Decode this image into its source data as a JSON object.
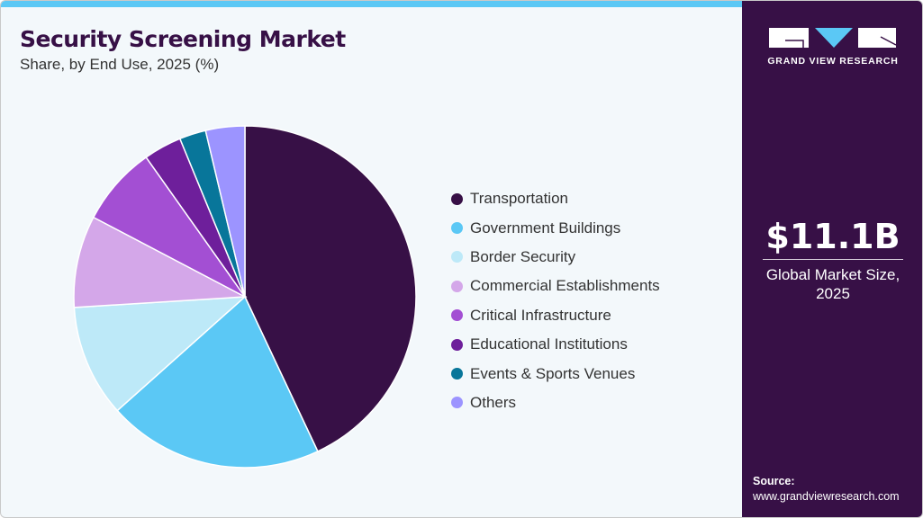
{
  "header": {
    "title": "Security Screening Market",
    "subtitle": "Share, by End Use, 2025 (%)"
  },
  "chart_data": {
    "type": "pie",
    "title": "Security Screening Market",
    "subtitle": "Share, by End Use, 2025 (%)",
    "legend_position": "right",
    "start_angle": "top, clockwise",
    "categories": [
      "Transportation",
      "Government Buildings",
      "Border Security",
      "Commercial Establishments",
      "Critical Infrastructure",
      "Educational Institutions",
      "Events & Sports Venues",
      "Others"
    ],
    "values": [
      43.0,
      20.4,
      10.6,
      8.7,
      7.5,
      3.6,
      2.5,
      3.7
    ],
    "colors": [
      "#371046",
      "#5bc8f5",
      "#bde9f8",
      "#d4a7e9",
      "#a34fd3",
      "#6e1f9b",
      "#08769a",
      "#9c94ff"
    ]
  },
  "sidebar": {
    "logo_text": "GRAND VIEW RESEARCH",
    "market_size": "$11.1B",
    "market_caption_line1": "Global Market Size,",
    "market_caption_line2": "2025",
    "source_label": "Source:",
    "source_url": "www.grandviewresearch.com",
    "background": "#371046"
  }
}
